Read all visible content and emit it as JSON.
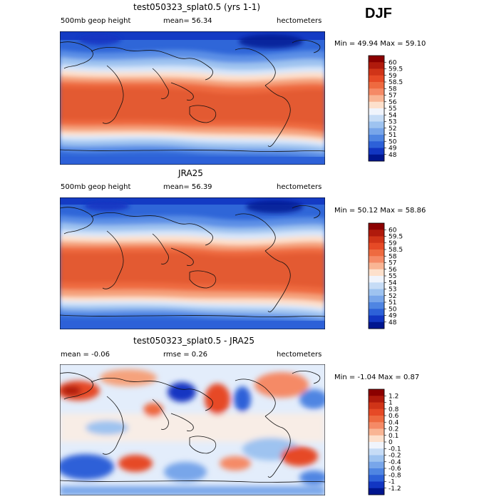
{
  "season": "DJF",
  "panels": [
    {
      "title": "test050323_splat0.5 (yrs 1-1)",
      "left": "500mb geop height",
      "mid": "mean=  56.34",
      "right": "hectometers",
      "minmax": "Min =  49.94 Max =  59.10",
      "colorbar": {
        "labels": [
          "60",
          "59.5",
          "59",
          "58.5",
          "58",
          "57",
          "56",
          "55",
          "54",
          "53",
          "52",
          "51",
          "50",
          "49",
          "48"
        ],
        "colors": [
          "#8b0000",
          "#b01a0c",
          "#d03418",
          "#e64a26",
          "#ee6a40",
          "#f58a66",
          "#f9b594",
          "#fde0cc",
          "#f0f4fc",
          "#c6dcf6",
          "#9ec3f0",
          "#78a6ea",
          "#4f85e2",
          "#2d61d8",
          "#1236c2",
          "#00168f"
        ]
      }
    },
    {
      "title": "JRA25",
      "left": "500mb geop height",
      "mid": "mean=  56.39",
      "right": "hectometers",
      "minmax": "Min =  50.12 Max =  58.86",
      "colorbar": {
        "labels": [
          "60",
          "59.5",
          "59",
          "58.5",
          "58",
          "57",
          "56",
          "55",
          "54",
          "53",
          "52",
          "51",
          "50",
          "49",
          "48"
        ],
        "colors": [
          "#8b0000",
          "#b01a0c",
          "#d03418",
          "#e64a26",
          "#ee6a40",
          "#f58a66",
          "#f9b594",
          "#fde0cc",
          "#f0f4fc",
          "#c6dcf6",
          "#9ec3f0",
          "#78a6ea",
          "#4f85e2",
          "#2d61d8",
          "#1236c2",
          "#00168f"
        ]
      }
    },
    {
      "title": "test050323_splat0.5 - JRA25",
      "left": "mean =  -0.06",
      "mid": "rmse =   0.26",
      "right": "hectometers",
      "minmax": "Min = -1.04 Max =   0.87",
      "colorbar": {
        "labels": [
          "1.2",
          "1",
          "0.8",
          "0.6",
          "0.4",
          "0.2",
          "0.1",
          "0",
          "-0.1",
          "-0.2",
          "-0.4",
          "-0.6",
          "-0.8",
          "-1",
          "-1.2"
        ],
        "colors": [
          "#8b0000",
          "#b01a0c",
          "#d03418",
          "#e64a26",
          "#ee6a40",
          "#f58a66",
          "#f9b594",
          "#fde0cc",
          "#f0f4fc",
          "#c6dcf6",
          "#9ec3f0",
          "#78a6ea",
          "#4f85e2",
          "#2d61d8",
          "#1236c2",
          "#00168f"
        ]
      }
    }
  ]
}
